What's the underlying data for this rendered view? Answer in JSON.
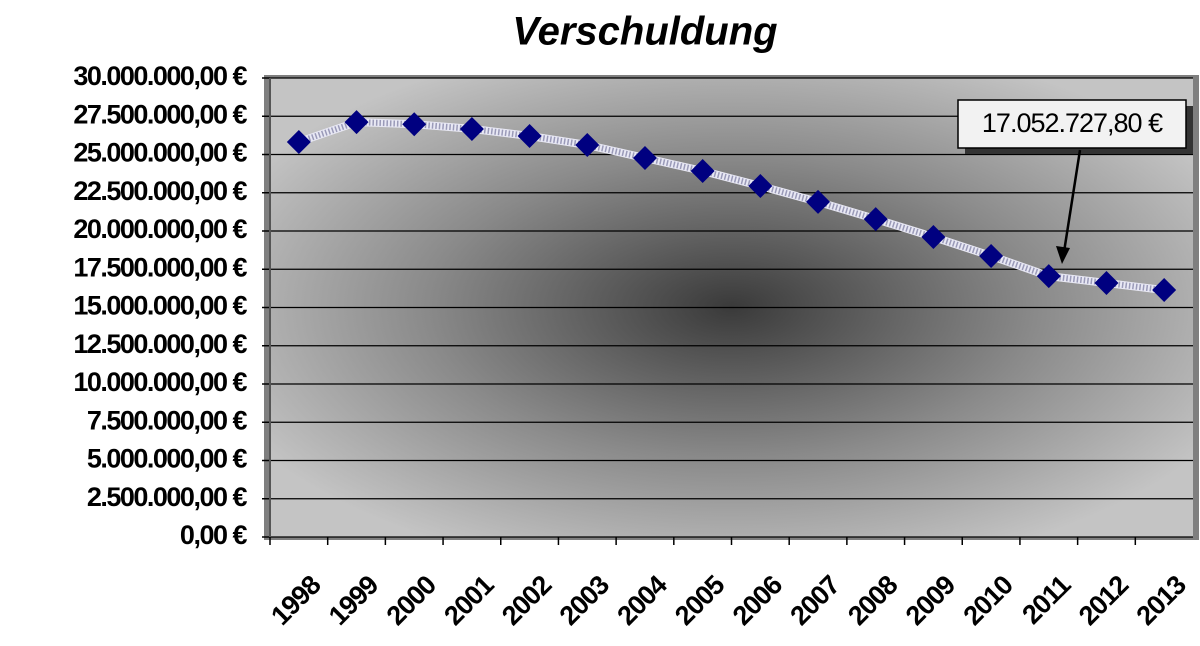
{
  "chart_data": {
    "type": "line",
    "title": "Verschuldung",
    "categories": [
      "1998",
      "1999",
      "2000",
      "2001",
      "2002",
      "2003",
      "2004",
      "2005",
      "2006",
      "2007",
      "2008",
      "2009",
      "2010",
      "2011",
      "2012",
      "2013"
    ],
    "values": [
      25820000,
      27120000,
      26980000,
      26670000,
      26210000,
      25620000,
      24770000,
      23920000,
      22940000,
      21900000,
      20780000,
      19610000,
      18370000,
      17052727.8,
      16600000,
      16140000
    ],
    "value_labels": [
      null,
      null,
      null,
      null,
      null,
      null,
      null,
      null,
      null,
      null,
      null,
      null,
      null,
      "17.052.727,80 €",
      null,
      null
    ],
    "color": "#000080",
    "ylim": [
      0,
      30000000
    ],
    "yticks": [
      {
        "value": 0,
        "label": "0,00 €"
      },
      {
        "value": 2500000,
        "label": "2.500.000,00 €"
      },
      {
        "value": 5000000,
        "label": "5.000.000,00 €"
      },
      {
        "value": 7500000,
        "label": "7.500.000,00 €"
      },
      {
        "value": 10000000,
        "label": "10.000.000,00 €"
      },
      {
        "value": 12500000,
        "label": "12.500.000,00 €"
      },
      {
        "value": 15000000,
        "label": "15.000.000,00 €"
      },
      {
        "value": 17500000,
        "label": "17.500.000,00 €"
      },
      {
        "value": 20000000,
        "label": "20.000.000,00 €"
      },
      {
        "value": 22500000,
        "label": "22.500.000,00 €"
      },
      {
        "value": 25000000,
        "label": "25.000.000,00 €"
      },
      {
        "value": 27500000,
        "label": "27.500.000,00 €"
      },
      {
        "value": 30000000,
        "label": "30.000.000,00 €"
      }
    ],
    "grid": true
  }
}
